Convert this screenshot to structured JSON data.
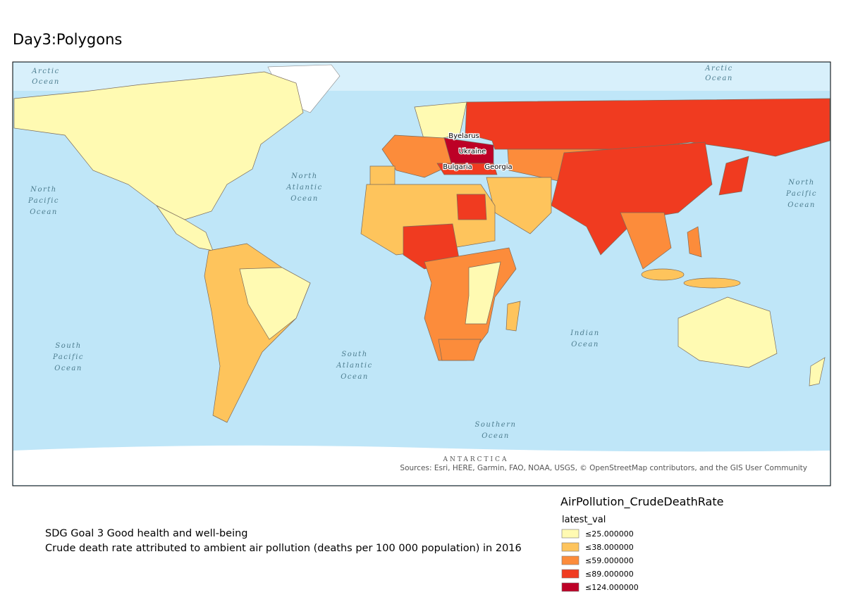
{
  "title": "Day3:Polygons",
  "map": {
    "ocean_labels": [
      {
        "lines": [
          "Arctic",
          "Ocean"
        ]
      },
      {
        "lines": [
          "Arctic",
          "Ocean"
        ]
      },
      {
        "lines": [
          "North",
          "Pacific",
          "Ocean"
        ]
      },
      {
        "lines": [
          "North",
          "Atlantic",
          "Ocean"
        ]
      },
      {
        "lines": [
          "North",
          "Pacific",
          "Ocean"
        ]
      },
      {
        "lines": [
          "South",
          "Pacific",
          "Ocean"
        ]
      },
      {
        "lines": [
          "South",
          "Atlantic",
          "Ocean"
        ]
      },
      {
        "lines": [
          "Indian",
          "Ocean"
        ]
      },
      {
        "lines": [
          "Southern",
          "Ocean"
        ]
      }
    ],
    "country_labels": [
      "Byelarus",
      "Ukraine",
      "Bulgaria",
      "Georgia"
    ],
    "antarctica_label": "ANTARCTICA",
    "attribution": "Sources: Esri, HERE, Garmin, FAO, NOAA, USGS, © OpenStreetMap contributors, and the GIS User Community"
  },
  "legend": {
    "title": "AirPollution_CrudeDeathRate",
    "field": "latest_val",
    "classes": [
      {
        "label": "≤25.000000",
        "color": "#fffab2"
      },
      {
        "label": "≤38.000000",
        "color": "#fec45c"
      },
      {
        "label": "≤59.000000",
        "color": "#fc8c3b"
      },
      {
        "label": "≤89.000000",
        "color": "#f03b20"
      },
      {
        "label": "≤124.000000",
        "color": "#bd0026"
      }
    ]
  },
  "caption": [
    "SDG Goal 3 Good health and well-being",
    "Crude death rate attributed to ambient air pollution (deaths per 100 000 population) in 2016"
  ]
}
